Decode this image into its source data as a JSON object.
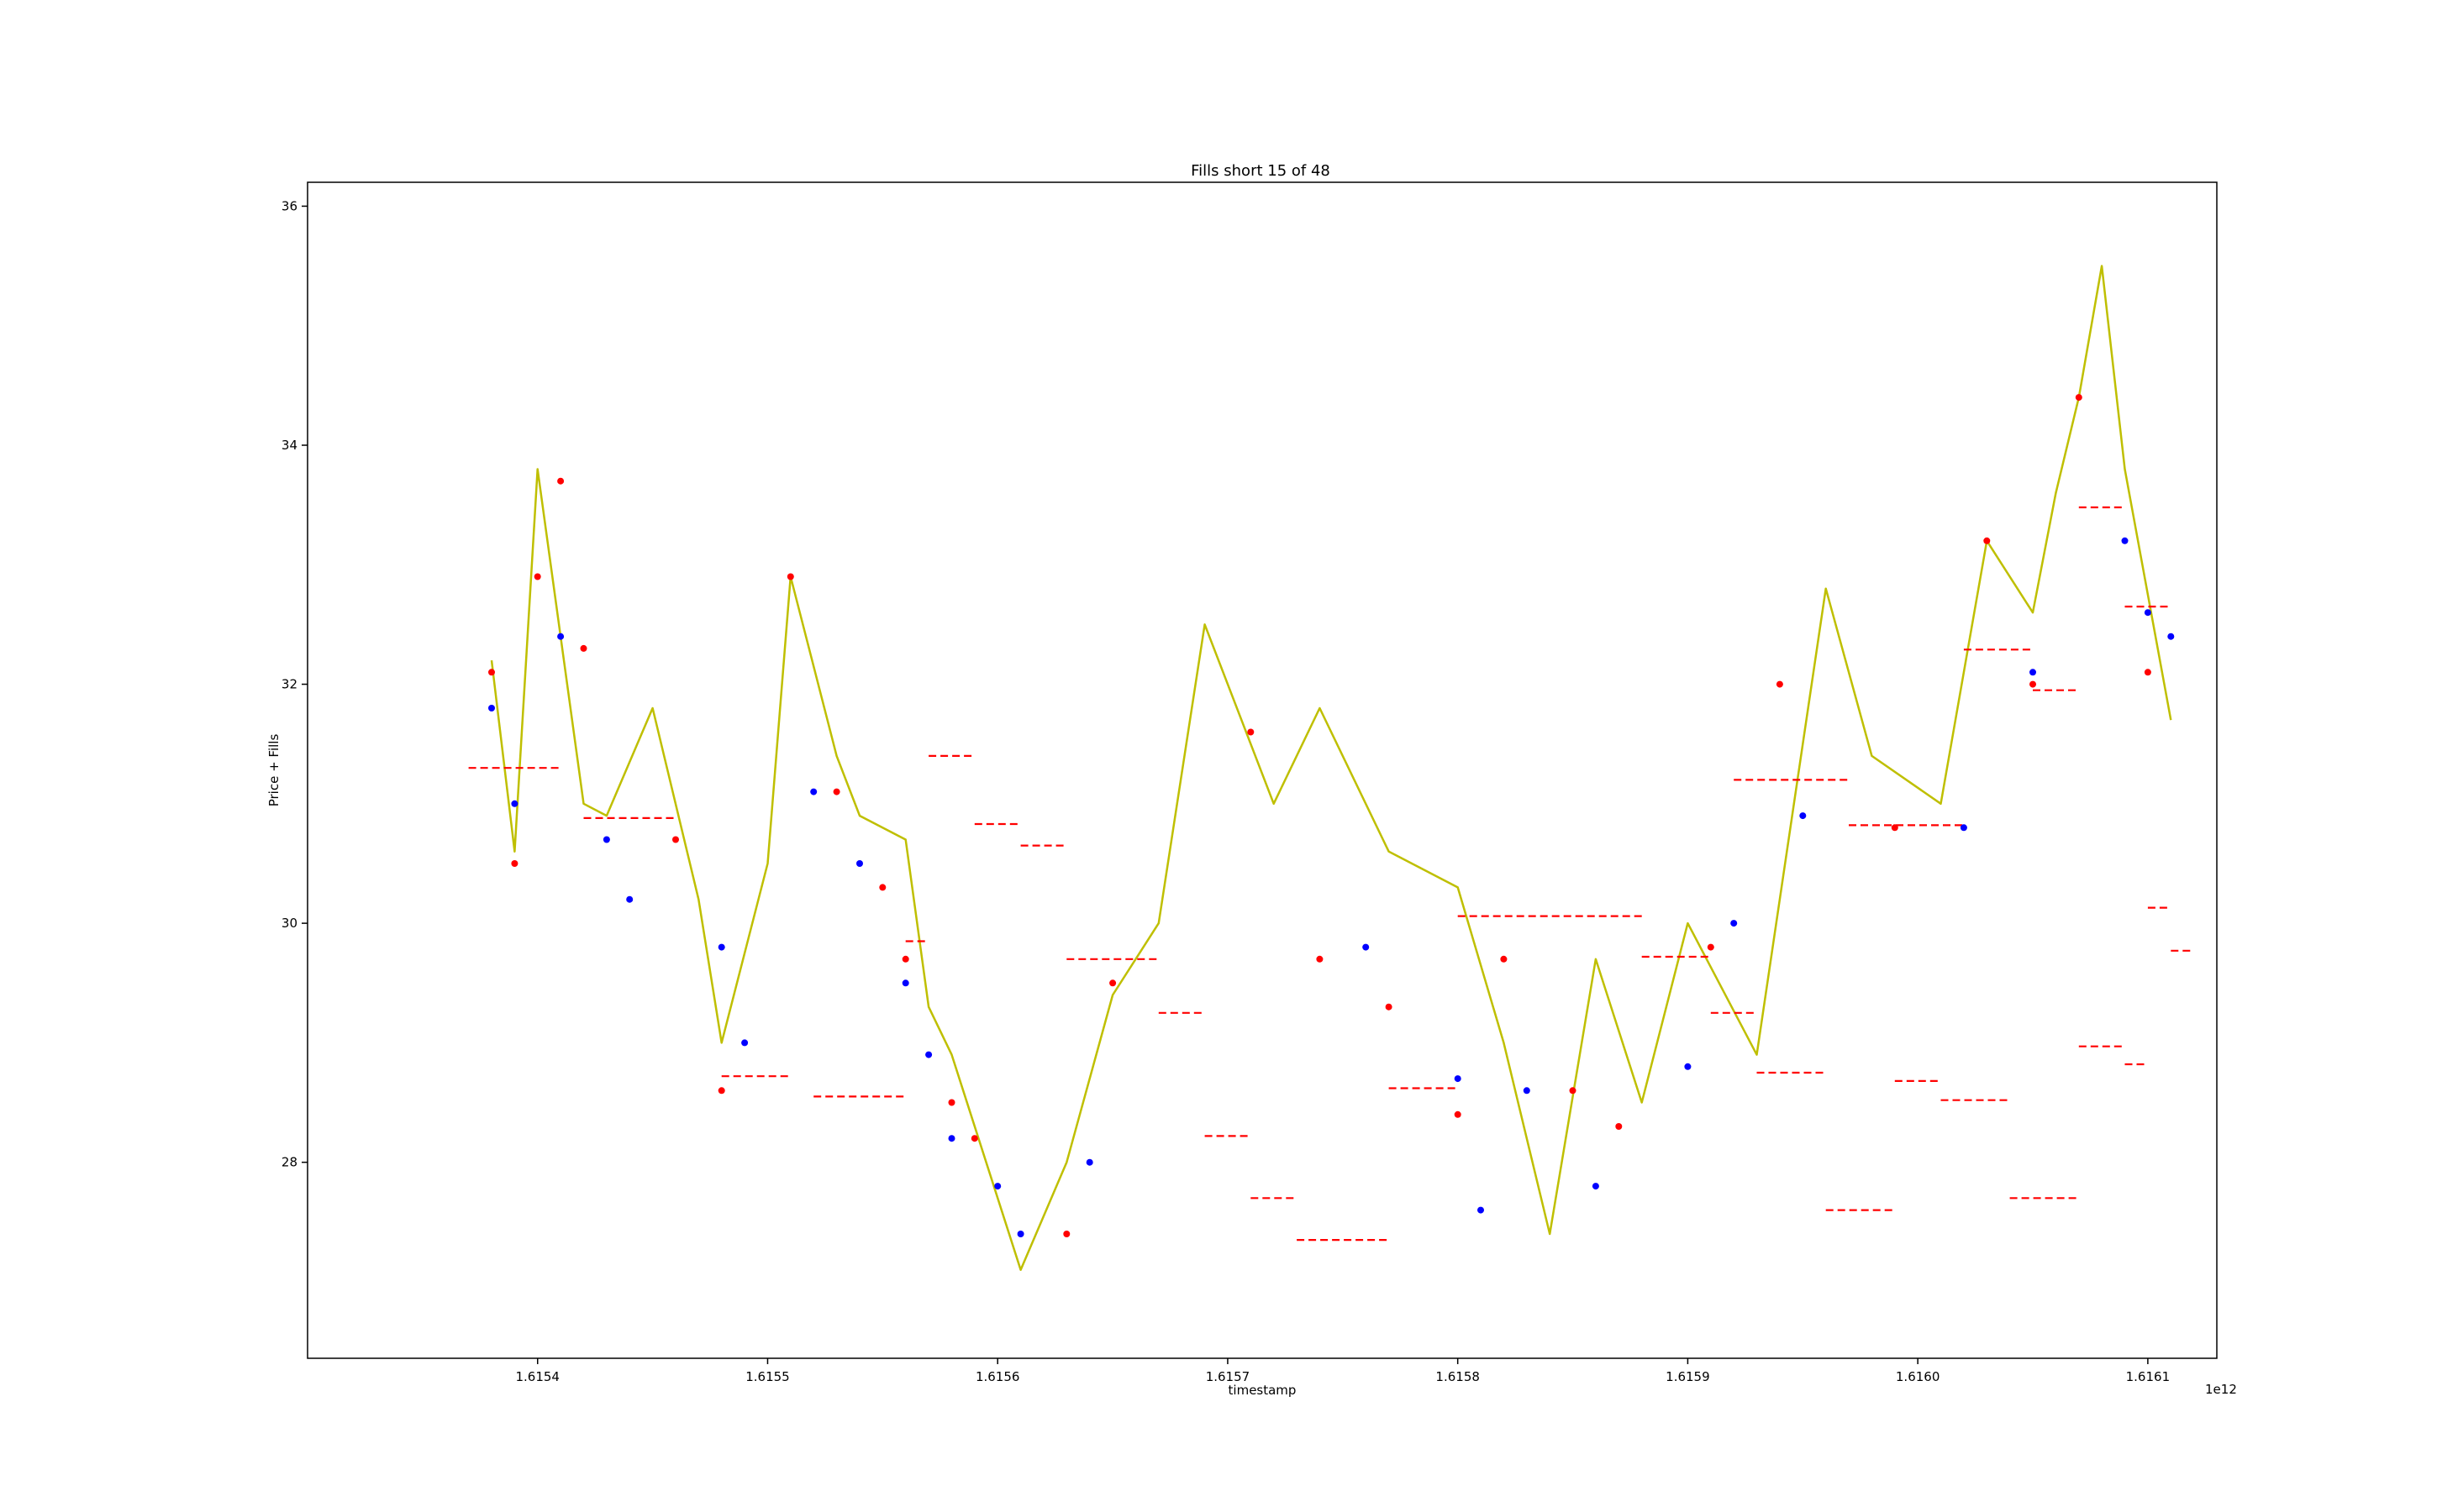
{
  "chart_data": {
    "type": "line",
    "title": "Fills short 15 of 48",
    "xlabel": "timestamp",
    "ylabel": "Price + Fills",
    "x_offset_label": "1e12",
    "xlim": [
      1.6153,
      1.61613
    ],
    "ylim": [
      26.36,
      36.2
    ],
    "x_ticks": [
      1.6154,
      1.6155,
      1.6156,
      1.6157,
      1.6158,
      1.6159,
      1.616,
      1.6161
    ],
    "x_tick_labels": [
      "1.6154",
      "1.6155",
      "1.6156",
      "1.6157",
      "1.6158",
      "1.6159",
      "1.6160",
      "1.6161"
    ],
    "y_ticks": [
      28,
      30,
      32,
      34,
      36
    ],
    "y_tick_labels": [
      "28",
      "30",
      "32",
      "34",
      "36"
    ],
    "grid": false,
    "colors": {
      "price": "#bfbf00",
      "sell": "#ff0000",
      "buy": "#0000ff",
      "level": "#ff0000"
    },
    "price_series": {
      "name": "price",
      "x": [
        1.61538,
        1.61539,
        1.6154,
        1.61542,
        1.61543,
        1.61545,
        1.61547,
        1.61548,
        1.6155,
        1.61551,
        1.61553,
        1.61554,
        1.61556,
        1.61557,
        1.61558,
        1.61561,
        1.61563,
        1.61565,
        1.61567,
        1.61569,
        1.61572,
        1.61574,
        1.61577,
        1.6158,
        1.61582,
        1.61584,
        1.61586,
        1.61588,
        1.6159,
        1.61593,
        1.61596,
        1.61598,
        1.61601,
        1.61603,
        1.61605,
        1.61606,
        1.61607,
        1.61608,
        1.61609,
        1.61611
      ],
      "y": [
        32.2,
        30.6,
        33.8,
        31.0,
        30.9,
        31.8,
        30.2,
        29.0,
        30.5,
        32.9,
        31.4,
        30.9,
        30.7,
        29.3,
        28.9,
        27.1,
        28.0,
        29.4,
        30.0,
        32.5,
        31.0,
        31.8,
        30.6,
        30.3,
        29.0,
        27.4,
        29.7,
        28.5,
        30.0,
        28.9,
        32.8,
        31.4,
        31.0,
        33.2,
        32.6,
        33.6,
        34.4,
        35.5,
        33.8,
        31.7
      ]
    },
    "sell_fills": {
      "name": "sell",
      "x": [
        1.61538,
        1.61539,
        1.6154,
        1.61541,
        1.61542,
        1.61546,
        1.61548,
        1.61551,
        1.61553,
        1.61555,
        1.61556,
        1.61558,
        1.61559,
        1.61563,
        1.61565,
        1.61571,
        1.61574,
        1.61577,
        1.6158,
        1.61582,
        1.61585,
        1.61587,
        1.61591,
        1.61594,
        1.61599,
        1.61603,
        1.61605,
        1.61607,
        1.6161
      ],
      "y": [
        32.1,
        30.5,
        32.9,
        33.7,
        32.3,
        30.7,
        28.6,
        32.9,
        31.1,
        30.3,
        29.7,
        28.5,
        28.2,
        27.4,
        29.5,
        31.6,
        29.7,
        29.3,
        28.4,
        29.7,
        28.6,
        28.3,
        29.8,
        32.0,
        30.8,
        33.2,
        32.0,
        34.4,
        32.1
      ]
    },
    "buy_fills": {
      "name": "buy",
      "x": [
        1.61538,
        1.61539,
        1.61541,
        1.61543,
        1.61544,
        1.61548,
        1.61549,
        1.61552,
        1.61554,
        1.61556,
        1.61557,
        1.61558,
        1.6156,
        1.61561,
        1.61564,
        1.61576,
        1.6158,
        1.61581,
        1.61583,
        1.61586,
        1.6159,
        1.61592,
        1.61595,
        1.61602,
        1.61605,
        1.61609,
        1.6161,
        1.61611
      ],
      "y": [
        31.8,
        31.0,
        32.4,
        30.7,
        30.2,
        29.8,
        29.0,
        31.1,
        30.5,
        29.5,
        28.9,
        28.2,
        27.8,
        27.4,
        28.0,
        29.8,
        28.7,
        27.6,
        28.6,
        27.8,
        28.8,
        30.0,
        30.9,
        30.8,
        32.1,
        33.2,
        32.6,
        32.4
      ]
    },
    "level_lines": {
      "name": "levels",
      "segments": [
        {
          "x": [
            1.61537,
            1.61541
          ],
          "y": 31.3
        },
        {
          "x": [
            1.61542,
            1.61546
          ],
          "y": 30.88
        },
        {
          "x": [
            1.61548,
            1.61551
          ],
          "y": 28.72
        },
        {
          "x": [
            1.61552,
            1.61556
          ],
          "y": 28.55
        },
        {
          "x": [
            1.61556,
            1.61557
          ],
          "y": 29.85
        },
        {
          "x": [
            1.61557,
            1.61559
          ],
          "y": 31.4
        },
        {
          "x": [
            1.61559,
            1.61561
          ],
          "y": 30.83
        },
        {
          "x": [
            1.61561,
            1.61563
          ],
          "y": 30.65
        },
        {
          "x": [
            1.61563,
            1.61567
          ],
          "y": 29.7
        },
        {
          "x": [
            1.61567,
            1.61569
          ],
          "y": 29.25
        },
        {
          "x": [
            1.61569,
            1.61571
          ],
          "y": 28.22
        },
        {
          "x": [
            1.61571,
            1.61573
          ],
          "y": 27.7
        },
        {
          "x": [
            1.61573,
            1.61577
          ],
          "y": 27.35
        },
        {
          "x": [
            1.61577,
            1.6158
          ],
          "y": 28.62
        },
        {
          "x": [
            1.6158,
            1.61588
          ],
          "y": 30.06
        },
        {
          "x": [
            1.61588,
            1.61591
          ],
          "y": 29.72
        },
        {
          "x": [
            1.61591,
            1.61593
          ],
          "y": 29.25
        },
        {
          "x": [
            1.61593,
            1.61596
          ],
          "y": 28.75
        },
        {
          "x": [
            1.61596,
            1.61599
          ],
          "y": 27.6
        },
        {
          "x": [
            1.61599,
            1.61601
          ],
          "y": 28.68
        },
        {
          "x": [
            1.61601,
            1.61604
          ],
          "y": 28.52
        },
        {
          "x": [
            1.61604,
            1.61607
          ],
          "y": 27.7
        },
        {
          "x": [
            1.61607,
            1.61609
          ],
          "y": 28.97
        },
        {
          "x": [
            1.61609,
            1.6161
          ],
          "y": 28.82
        },
        {
          "x": [
            1.6161,
            1.61611
          ],
          "y": 30.13
        },
        {
          "x": [
            1.61611,
            1.61612
          ],
          "y": 29.77
        },
        {
          "x": [
            1.61592,
            1.61597
          ],
          "y": 31.2
        },
        {
          "x": [
            1.61597,
            1.61602
          ],
          "y": 30.82
        },
        {
          "x": [
            1.61602,
            1.61605
          ],
          "y": 32.29
        },
        {
          "x": [
            1.61605,
            1.61607
          ],
          "y": 31.95
        },
        {
          "x": [
            1.61607,
            1.61609
          ],
          "y": 33.48
        },
        {
          "x": [
            1.61609,
            1.61611
          ],
          "y": 32.65
        }
      ]
    }
  }
}
